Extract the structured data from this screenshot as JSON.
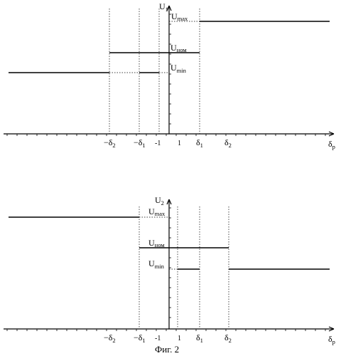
{
  "figure_caption": "Фиг. 2",
  "graph_top": {
    "y_axis_label": "U",
    "y_axis_sub": "1",
    "x_axis_label": "δ",
    "x_axis_sub": "р",
    "level_labels": [
      {
        "main": "U",
        "sub": "max"
      },
      {
        "main": "U",
        "sub": "ном"
      },
      {
        "main": "U",
        "sub": "min"
      }
    ],
    "x_tick_labels": [
      {
        "main": "−δ",
        "sub": "2"
      },
      {
        "main": "−δ",
        "sub": "1"
      },
      {
        "main": "-1",
        "sub": ""
      },
      {
        "main": "1",
        "sub": ""
      },
      {
        "main": "δ",
        "sub": "1"
      },
      {
        "main": "δ",
        "sub": "2"
      }
    ]
  },
  "graph_bottom": {
    "y_axis_label": "U",
    "y_axis_sub": "2",
    "x_axis_label": "δ",
    "x_axis_sub": "р",
    "level_labels": [
      {
        "main": "U",
        "sub": "max"
      },
      {
        "main": "U",
        "sub": "ном"
      },
      {
        "main": "U",
        "sub": "min"
      }
    ],
    "x_tick_labels": [
      {
        "main": "−δ",
        "sub": "2"
      },
      {
        "main": "−δ",
        "sub": "1"
      },
      {
        "main": "-1",
        "sub": ""
      },
      {
        "main": "1",
        "sub": ""
      },
      {
        "main": "δ",
        "sub": "1"
      },
      {
        "main": "δ",
        "sub": "2"
      }
    ]
  }
}
